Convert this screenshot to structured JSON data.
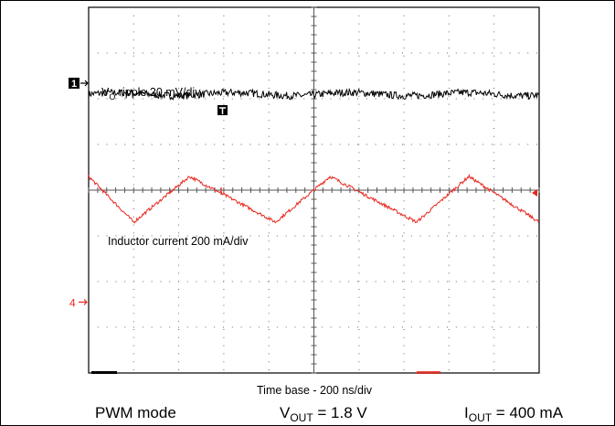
{
  "chart_data": {
    "type": "line",
    "title": "",
    "xlabel": "Time base - 200 ns/div",
    "ylabel": "",
    "grid": true,
    "time_base_ns_per_div": 200,
    "x_divisions": 10,
    "y_divisions": 8,
    "xlim_ns": [
      0,
      2000
    ],
    "channels": [
      {
        "marker": "1",
        "label": {
          "main": "V",
          "sub": "O",
          "rest": " ripple 20 mV/div"
        },
        "scale": "20 mV/div",
        "color": "#000000",
        "waveform": "ripple",
        "level_div": 2.1,
        "ripple_pp_mV": 4
      },
      {
        "marker": "4",
        "label": {
          "main": "Inductor current 200 mA/div",
          "sub": "",
          "rest": ""
        },
        "scale": "200 mA/div",
        "color": "#e8261c",
        "waveform": "triangle",
        "x_ns_peaks": [
          0,
          448,
          1072,
          1688
        ],
        "x_ns_valleys": [
          200,
          830,
          1456,
          2000
        ],
        "level_div": -0.2,
        "swing_pp_mA": 200
      }
    ]
  },
  "footer": {
    "mode": "PWM mode",
    "vout": {
      "main": "V",
      "sub": "OUT",
      "rest": " = 1.8 V"
    },
    "iout": {
      "main": "I",
      "sub": "OUT",
      "rest": " = 400 mA"
    }
  }
}
